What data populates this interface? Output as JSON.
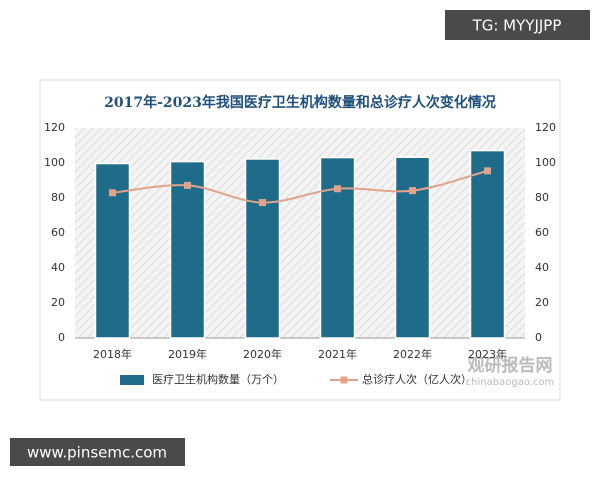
{
  "overlay_top": "TG: MYYJJPP",
  "overlay_bottom": "www.pinsemc.com",
  "watermark": {
    "title": "观研报告网",
    "url": "chinabaogao.com"
  },
  "chart_data": {
    "type": "bar-line",
    "title": "2017年-2023年我国医疗卫生机构数量和总诊疗人次变化情况",
    "categories": [
      "2018年",
      "2019年",
      "2020年",
      "2021年",
      "2022年",
      "2023年"
    ],
    "series": [
      {
        "name": "医疗卫生机构数量（万个）",
        "type": "bar",
        "color": "#1f6b8a",
        "values": [
          99.7,
          100.8,
          102.3,
          103.1,
          103.3,
          107.1
        ]
      },
      {
        "name": "总诊疗人次（亿人次）",
        "type": "line",
        "axis": "y2",
        "color": "#e0a48a",
        "values": [
          83.0,
          87.2,
          77.4,
          85.3,
          84.2,
          95.5
        ]
      }
    ],
    "ylim": [
      0,
      120
    ],
    "yticks": [
      0,
      20,
      40,
      60,
      80,
      100,
      120
    ],
    "y2lim": [
      0,
      120
    ],
    "y2ticks": [
      0,
      20,
      40,
      60,
      80,
      100,
      120
    ],
    "legend": "bottom"
  }
}
